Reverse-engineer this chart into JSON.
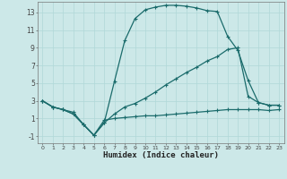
{
  "xlabel": "Humidex (Indice chaleur)",
  "bg_color": "#cce8e8",
  "line_color": "#1a6b6b",
  "grid_color": "#b0d8d8",
  "xlim": [
    -0.5,
    23.5
  ],
  "ylim": [
    -1.8,
    14.2
  ],
  "xticks": [
    0,
    1,
    2,
    3,
    4,
    5,
    6,
    7,
    8,
    9,
    10,
    11,
    12,
    13,
    14,
    15,
    16,
    17,
    18,
    19,
    20,
    21,
    22,
    23
  ],
  "yticks": [
    -1,
    1,
    3,
    5,
    7,
    9,
    11,
    13
  ],
  "curve1_x": [
    0,
    1,
    2,
    3,
    4,
    5,
    6,
    7,
    8,
    9,
    10,
    11,
    12,
    13,
    14,
    15,
    16,
    17,
    18,
    19,
    20,
    21,
    22,
    23
  ],
  "curve1_y": [
    3.0,
    2.3,
    2.0,
    1.7,
    0.3,
    -0.9,
    0.5,
    5.2,
    9.8,
    12.3,
    13.3,
    13.6,
    13.8,
    13.8,
    13.7,
    13.5,
    13.2,
    13.1,
    10.3,
    8.7,
    5.3,
    2.8,
    2.5,
    2.5
  ],
  "curve2_x": [
    0,
    1,
    2,
    3,
    4,
    5,
    6,
    7,
    8,
    9,
    10,
    11,
    12,
    13,
    14,
    15,
    16,
    17,
    18,
    19,
    20,
    21,
    22,
    23
  ],
  "curve2_y": [
    3.0,
    2.3,
    2.0,
    1.5,
    0.3,
    -0.9,
    0.5,
    1.5,
    2.3,
    2.7,
    3.3,
    4.0,
    4.8,
    5.5,
    6.2,
    6.8,
    7.5,
    8.0,
    8.8,
    9.0,
    3.5,
    2.8,
    2.5,
    2.5
  ],
  "curve3_x": [
    0,
    1,
    2,
    3,
    4,
    5,
    6,
    7,
    8,
    9,
    10,
    11,
    12,
    13,
    14,
    15,
    16,
    17,
    18,
    19,
    20,
    21,
    22,
    23
  ],
  "curve3_y": [
    3.0,
    2.3,
    2.0,
    1.5,
    0.3,
    -0.9,
    0.8,
    1.0,
    1.1,
    1.2,
    1.3,
    1.3,
    1.4,
    1.5,
    1.6,
    1.7,
    1.8,
    1.9,
    2.0,
    2.0,
    2.0,
    2.0,
    1.9,
    2.0
  ],
  "figsize": [
    3.2,
    2.0
  ],
  "dpi": 100
}
